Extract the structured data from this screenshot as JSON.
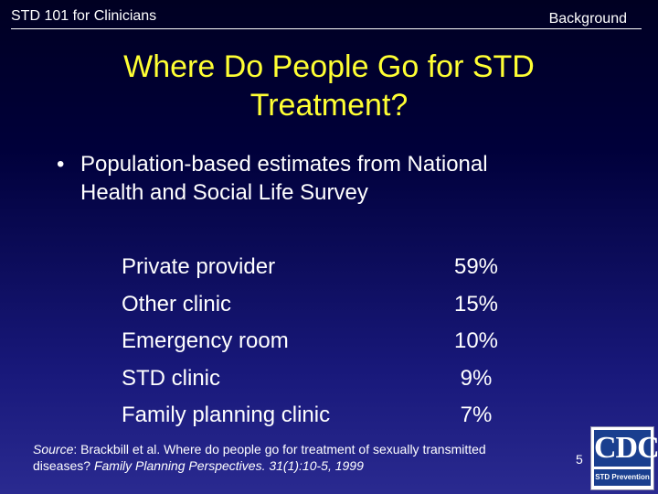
{
  "header": {
    "course": "STD 101 for Clinicians",
    "section": "Background"
  },
  "title": {
    "line1": "Where Do People Go for STD",
    "line2": "Treatment?"
  },
  "bullet": {
    "symbol": "•",
    "line1": "Population-based estimates from National",
    "line2": "Health and Social Life Survey"
  },
  "stats": [
    {
      "label": "Private provider",
      "value": "59%"
    },
    {
      "label": "Other clinic",
      "value": "15%"
    },
    {
      "label": "Emergency room",
      "value": "10%"
    },
    {
      "label": "STD clinic",
      "value": "9%"
    },
    {
      "label": "Family planning clinic",
      "value": "7%"
    }
  ],
  "source": {
    "label": "Source",
    "text1": ": Brackbill et al. Where do people go for treatment of sexually transmitted",
    "text2": "diseases? ",
    "journal": "Family Planning Perspectives. 31(1):10-5, 1999"
  },
  "page_number": "5",
  "logo": {
    "main": "CDC",
    "sub": "STD Prevention"
  },
  "colors": {
    "title": "#ffff33",
    "text": "#ffffff",
    "background_top": "#000022",
    "background_bottom": "#2a2a90",
    "logo_blue": "#1a3f8f"
  }
}
